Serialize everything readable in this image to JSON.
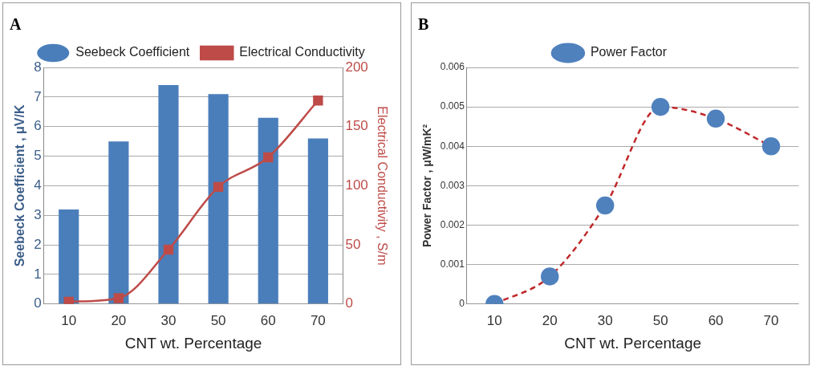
{
  "chart_data": [
    {
      "type": "bar",
      "title": "A",
      "xlabel": "CNT wt. Percentage",
      "ylabel": "Seebeck Coefficient , μV/K",
      "y2label": "Electrical Conductivity , S/m",
      "categories": [
        "10",
        "20",
        "30",
        "50",
        "60",
        "70"
      ],
      "series": [
        {
          "name": "Seebeck Coefficient",
          "color": "#4a7ebb",
          "values": [
            3.2,
            5.5,
            7.4,
            7.1,
            6.3,
            5.6
          ]
        },
        {
          "name": "Electrical Conductivity",
          "type": "line",
          "axis": "y2",
          "color": "#be4b48",
          "marker": "square",
          "line_style": "solid",
          "values": [
            2,
            5,
            46,
            99,
            124,
            172
          ]
        }
      ],
      "ylim": [
        0,
        8
      ],
      "yticks": [
        0,
        1,
        2,
        3,
        4,
        5,
        6,
        7,
        8
      ],
      "y2lim": [
        0,
        200
      ],
      "y2ticks": [
        0,
        50,
        100,
        150,
        200
      ],
      "grid": "y",
      "legend": "top"
    },
    {
      "type": "line",
      "title": "B",
      "xlabel": "CNT wt. Percentage",
      "ylabel": "Power Factor , μW/mK²",
      "categories": [
        "10",
        "20",
        "30",
        "50",
        "60",
        "70"
      ],
      "series": [
        {
          "name": "Power Factor",
          "color": "#c0282a",
          "colors": [
            "#4f81bd",
            "#4f81bd",
            "#4f81bd",
            "#4f81bd",
            "#4f81bd",
            "#4f81bd"
          ],
          "values": [
            0,
            0.0007,
            0.0025,
            0.005,
            0.0047,
            0.004
          ]
        }
      ],
      "ylim": [
        0,
        0.006
      ],
      "yticks": [
        0,
        0.001,
        0.002,
        0.003,
        0.004,
        0.005,
        0.006
      ],
      "marker": "circle",
      "line_style": "dashed",
      "grid": "y",
      "legend": "top"
    }
  ]
}
